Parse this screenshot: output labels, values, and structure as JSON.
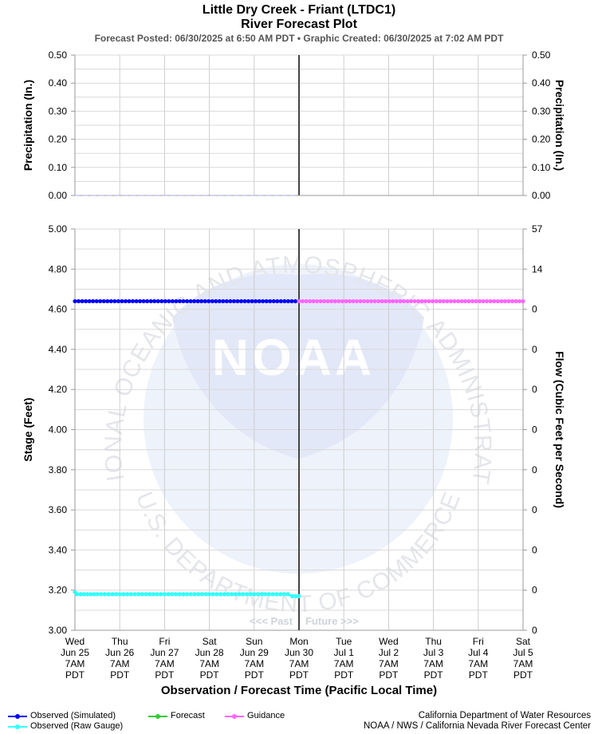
{
  "header": {
    "title_line1": "Little Dry Creek - Friant (LTDC1)",
    "title_line2": "River Forecast Plot",
    "posted_text": "Forecast Posted: 06/30/2025 at 6:50 AM PDT  •  Graphic Created: 06/30/2025 at 7:02 AM PDT"
  },
  "chart_data": [
    {
      "type": "line",
      "panel": "precipitation",
      "ylabel_left": "Precipitation (In.)",
      "ylabel_right": "Precipitation (In.)",
      "ylim": [
        0.0,
        0.5
      ],
      "yticks": [
        "0.00",
        "0.10",
        "0.20",
        "0.30",
        "0.40",
        "0.50"
      ],
      "yticks_right": [
        "0.00",
        "0.10",
        "0.20",
        "0.30",
        "0.40",
        "0.50"
      ],
      "series": [
        {
          "name": "Precipitation",
          "x": [
            "2025-06-25 07:00",
            "2025-06-30 07:00"
          ],
          "values": [
            0.0,
            0.0
          ],
          "color": "#a6a6ff",
          "style": "dashed"
        }
      ]
    },
    {
      "type": "line",
      "panel": "stage",
      "xlabel": "Observation / Forecast Time (Pacific Local Time)",
      "ylabel_left": "Stage (Feet)",
      "ylabel_right": "Flow (Cubic Feet per Second)",
      "ylim": [
        3.0,
        5.0
      ],
      "yticks": [
        "3.00",
        "3.20",
        "3.40",
        "3.60",
        "3.80",
        "4.00",
        "4.20",
        "4.40",
        "4.60",
        "4.80",
        "5.00"
      ],
      "yticks_right": [
        "0",
        "0",
        "0",
        "0",
        "0",
        "0",
        "0",
        "0",
        "0",
        "14",
        "57"
      ],
      "xticks": [
        [
          "Wed",
          "Jun 25",
          "7AM",
          "PDT"
        ],
        [
          "Thu",
          "Jun 26",
          "7AM",
          "PDT"
        ],
        [
          "Fri",
          "Jun 27",
          "7AM",
          "PDT"
        ],
        [
          "Sat",
          "Jun 28",
          "7AM",
          "PDT"
        ],
        [
          "Sun",
          "Jun 29",
          "7AM",
          "PDT"
        ],
        [
          "Mon",
          "Jun 30",
          "7AM",
          "PDT"
        ],
        [
          "Tue",
          "Jul 1",
          "7AM",
          "PDT"
        ],
        [
          "Wed",
          "Jul 2",
          "7AM",
          "PDT"
        ],
        [
          "Thu",
          "Jul 3",
          "7AM",
          "PDT"
        ],
        [
          "Fri",
          "Jul 4",
          "7AM",
          "PDT"
        ],
        [
          "Sat",
          "Jul 5",
          "7AM",
          "PDT"
        ]
      ],
      "now_label_past": "<<< Past",
      "now_label_future": "Future >>>",
      "series": [
        {
          "name": "Observed (Simulated)",
          "x_days": [
            0,
            5
          ],
          "values": [
            4.64,
            4.64
          ],
          "color": "#0000ff"
        },
        {
          "name": "Guidance",
          "x_days": [
            5,
            10
          ],
          "values": [
            4.64,
            4.64
          ],
          "color": "#ff66ff"
        },
        {
          "name": "Observed (Raw Gauge)",
          "x_days": [
            0,
            0.05,
            0.5,
            1,
            1.5,
            2,
            2.5,
            3,
            3.5,
            4,
            4.5,
            4.75,
            4.85,
            5
          ],
          "values": [
            3.19,
            3.18,
            3.18,
            3.18,
            3.18,
            3.18,
            3.18,
            3.18,
            3.18,
            3.18,
            3.18,
            3.18,
            3.17,
            3.17
          ],
          "color": "#33ffff"
        }
      ]
    }
  ],
  "legend": {
    "observed_simulated": "Observed (Simulated)",
    "observed_raw": "Observed (Raw Gauge)",
    "forecast": "Forecast",
    "guidance": "Guidance",
    "colors": {
      "observed_simulated": "#0000ff",
      "observed_raw": "#33ffff",
      "forecast": "#33cc33",
      "guidance": "#ff66ff"
    }
  },
  "credits": {
    "line1": "California Department of Water Resources",
    "line2": "NOAA / NWS / California Nevada River Forecast Center"
  },
  "watermark": {
    "logo_text": "NOAA",
    "ring_top": "NATIONAL OCEANIC AND ATMOSPHERIC ADMINISTRATION",
    "ring_bottom": "U.S. DEPARTMENT OF COMMERCE"
  }
}
